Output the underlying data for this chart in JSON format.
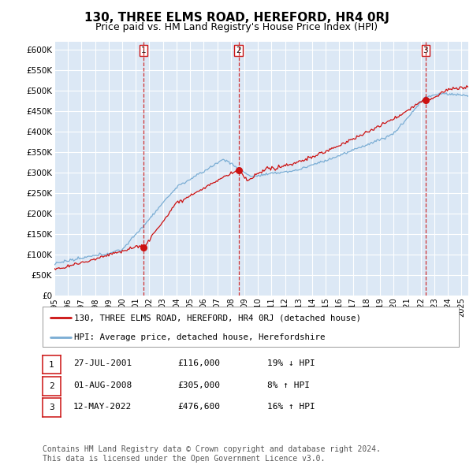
{
  "title": "130, THREE ELMS ROAD, HEREFORD, HR4 0RJ",
  "subtitle": "Price paid vs. HM Land Registry's House Price Index (HPI)",
  "title_fontsize": 11,
  "subtitle_fontsize": 9,
  "ylabel_ticks": [
    "£0",
    "£50K",
    "£100K",
    "£150K",
    "£200K",
    "£250K",
    "£300K",
    "£350K",
    "£400K",
    "£450K",
    "£500K",
    "£550K",
    "£600K"
  ],
  "ytick_values": [
    0,
    50000,
    100000,
    150000,
    200000,
    250000,
    300000,
    350000,
    400000,
    450000,
    500000,
    550000,
    600000
  ],
  "ylim": [
    0,
    620000
  ],
  "xlim_start": 1995.0,
  "xlim_end": 2025.5,
  "plot_bg_color": "#dce8f5",
  "grid_color": "#ffffff",
  "hpi_color": "#7aadd4",
  "price_color": "#cc1111",
  "vline_color": "#cc1111",
  "transaction_dates": [
    2001.57,
    2008.58,
    2022.36
  ],
  "transaction_prices": [
    116000,
    305000,
    476600
  ],
  "transaction_labels": [
    "1",
    "2",
    "3"
  ],
  "legend_price_label": "130, THREE ELMS ROAD, HEREFORD, HR4 0RJ (detached house)",
  "legend_hpi_label": "HPI: Average price, detached house, Herefordshire",
  "table_rows": [
    [
      "1",
      "27-JUL-2001",
      "£116,000",
      "19% ↓ HPI"
    ],
    [
      "2",
      "01-AUG-2008",
      "£305,000",
      "8% ↑ HPI"
    ],
    [
      "3",
      "12-MAY-2022",
      "£476,600",
      "16% ↑ HPI"
    ]
  ],
  "footer_text": "Contains HM Land Registry data © Crown copyright and database right 2024.\nThis data is licensed under the Open Government Licence v3.0.",
  "xtick_years": [
    1995,
    1996,
    1997,
    1998,
    1999,
    2000,
    2001,
    2002,
    2003,
    2004,
    2005,
    2006,
    2007,
    2008,
    2009,
    2010,
    2011,
    2012,
    2013,
    2014,
    2015,
    2016,
    2017,
    2018,
    2019,
    2020,
    2021,
    2022,
    2023,
    2024,
    2025
  ]
}
